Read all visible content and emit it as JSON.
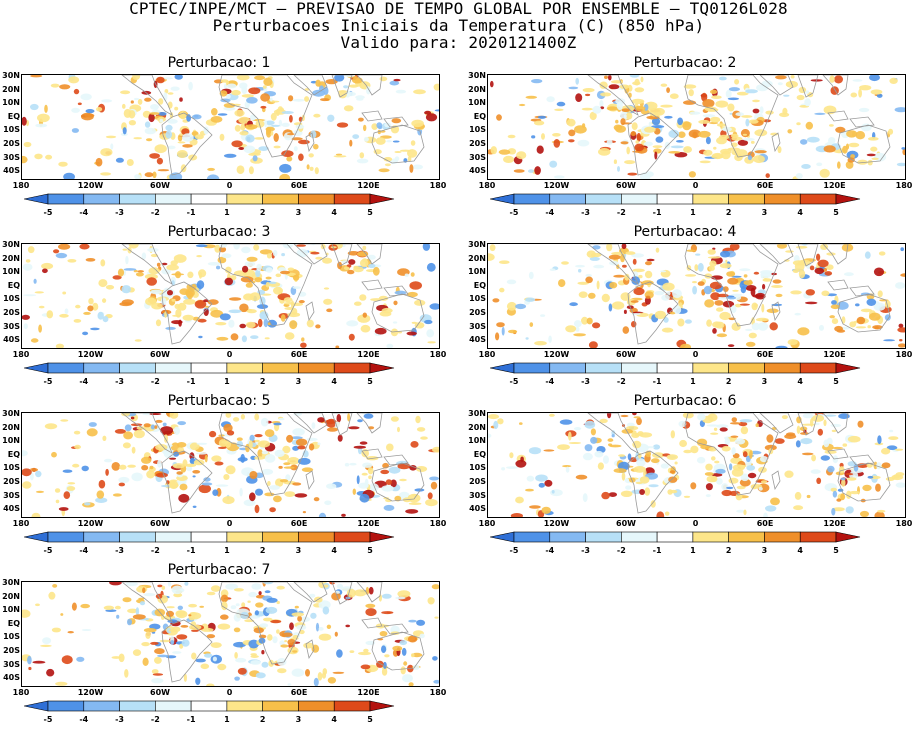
{
  "title": {
    "line1": "CPTEC/INPE/MCT – PREVISAO DE TEMPO GLOBAL POR ENSEMBLE – TQ0126L028",
    "line2": "Perturbacoes Iniciais da Temperatura (C) (850 hPa)",
    "line3": "Valido para: 2020121400Z"
  },
  "lat_labels": [
    "30N",
    "20N",
    "10N",
    "EQ",
    "10S",
    "20S",
    "30S",
    "40S"
  ],
  "lon_labels": [
    "180",
    "120W",
    "60W",
    "0",
    "60E",
    "120E",
    "180"
  ],
  "colorbar": {
    "ticks": [
      "-5",
      "-4",
      "-3",
      "-2",
      "-1",
      "1",
      "2",
      "3",
      "4",
      "5"
    ],
    "colors": [
      "#2f6fd6",
      "#4f92e8",
      "#84b9f2",
      "#b7e0f7",
      "#e6f7fb",
      "#ffffff",
      "#fde68a",
      "#f7c04a",
      "#ef8f2a",
      "#de4a1a",
      "#b3120f"
    ]
  },
  "panels": [
    {
      "title": "Perturbacao: 1"
    },
    {
      "title": "Perturbacao: 2"
    },
    {
      "title": "Perturbacao: 3"
    },
    {
      "title": "Perturbacao: 4"
    },
    {
      "title": "Perturbacao: 5"
    },
    {
      "title": "Perturbacao: 6"
    },
    {
      "title": "Perturbacao: 7"
    }
  ]
}
